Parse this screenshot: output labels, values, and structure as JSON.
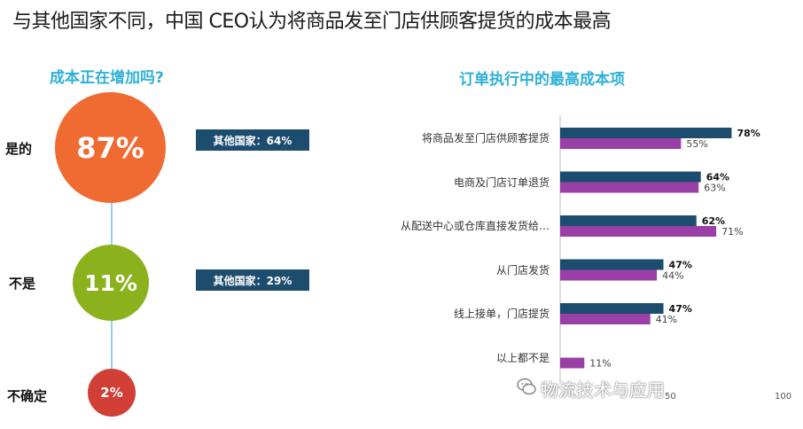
{
  "title": "与其他国家不同，中国 CEO认为将商品发至门店供顾客提货的成本最高",
  "left_panel": {
    "title": "成本正在增加吗?",
    "rows": [
      {
        "label": "是的",
        "value": "87%",
        "compare": "其他国家：64%"
      },
      {
        "label": "不是",
        "value": "11%",
        "compare": "其他国家：29%"
      },
      {
        "label": "不确定",
        "value": "2%"
      }
    ]
  },
  "colors": {
    "yes": "#ef6b32",
    "no": "#8bb21d",
    "unsure": "#d13f37",
    "title_accent": "#2fb0d8",
    "series_dark": "#1d4d6e",
    "series_purple": "#9a3fa6"
  },
  "chart_data": {
    "type": "bar",
    "orientation": "horizontal",
    "title": "订单执行中的最高成本项",
    "categories": [
      "将商品发至门店供顾客提货",
      "电商及门店订单退货",
      "从配送中心或仓库直接发货给…",
      "从门店发货",
      "线上接单，门店提货",
      "以上都不是"
    ],
    "series": [
      {
        "values": [
          78,
          64,
          62,
          47,
          47,
          null
        ],
        "labels": [
          "78%",
          "64%",
          "62%",
          "47%",
          "47%",
          ""
        ],
        "color": "#1d4d6e"
      },
      {
        "values": [
          55,
          63,
          71,
          44,
          41,
          11
        ],
        "labels": [
          "55%",
          "63%",
          "71%",
          "44%",
          "41%",
          "11%"
        ],
        "color": "#9a3fa6"
      }
    ],
    "xlim": [
      0,
      100
    ],
    "xticks": [
      "50",
      "100"
    ],
    "grid": false,
    "legend": "none"
  },
  "watermark": "物流技术与应用"
}
